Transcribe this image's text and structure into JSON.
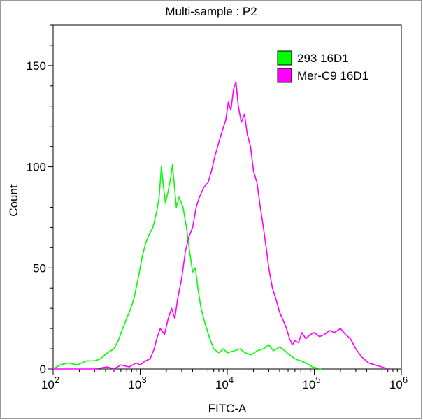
{
  "chart_data": {
    "type": "line",
    "title": "Multi-sample : P2",
    "xlabel": "FITC-A",
    "ylabel": "Count",
    "x_scale": "log",
    "xlim": [
      100,
      1000000
    ],
    "ylim": [
      0,
      170
    ],
    "x_ticks": [
      {
        "value": 100,
        "base": "10",
        "exp": "2"
      },
      {
        "value": 1000,
        "base": "10",
        "exp": "3"
      },
      {
        "value": 10000,
        "base": "10",
        "exp": "4"
      },
      {
        "value": 100000,
        "base": "10",
        "exp": "5"
      },
      {
        "value": 1000000,
        "base": "10",
        "exp": "6"
      }
    ],
    "y_ticks": [
      {
        "value": 0,
        "label": "0"
      },
      {
        "value": 50,
        "label": "50"
      },
      {
        "value": 100,
        "label": "100"
      },
      {
        "value": 150,
        "label": "150"
      }
    ],
    "grid": false,
    "legend_position": "top-right",
    "series": [
      {
        "name": "293 16D1",
        "color": "#00ff00",
        "points": [
          [
            100,
            0
          ],
          [
            120,
            2
          ],
          [
            150,
            3
          ],
          [
            190,
            2
          ],
          [
            240,
            4
          ],
          [
            300,
            4
          ],
          [
            350,
            5
          ],
          [
            420,
            8
          ],
          [
            500,
            10
          ],
          [
            560,
            14
          ],
          [
            630,
            20
          ],
          [
            700,
            25
          ],
          [
            780,
            30
          ],
          [
            850,
            35
          ],
          [
            950,
            45
          ],
          [
            1050,
            55
          ],
          [
            1150,
            62
          ],
          [
            1250,
            66
          ],
          [
            1400,
            70
          ],
          [
            1550,
            78
          ],
          [
            1650,
            85
          ],
          [
            1750,
            100
          ],
          [
            1850,
            90
          ],
          [
            1950,
            82
          ],
          [
            2100,
            88
          ],
          [
            2250,
            95
          ],
          [
            2350,
            101
          ],
          [
            2450,
            92
          ],
          [
            2600,
            80
          ],
          [
            2800,
            85
          ],
          [
            3100,
            80
          ],
          [
            3400,
            70
          ],
          [
            3700,
            58
          ],
          [
            4000,
            48
          ],
          [
            4300,
            50
          ],
          [
            4600,
            40
          ],
          [
            5000,
            30
          ],
          [
            5600,
            22
          ],
          [
            6300,
            15
          ],
          [
            7000,
            10
          ],
          [
            8000,
            8
          ],
          [
            9000,
            10
          ],
          [
            10000,
            8
          ],
          [
            12000,
            9
          ],
          [
            14000,
            10
          ],
          [
            16000,
            8
          ],
          [
            19000,
            7
          ],
          [
            22000,
            9
          ],
          [
            26000,
            10
          ],
          [
            30000,
            12
          ],
          [
            34000,
            9
          ],
          [
            40000,
            11
          ],
          [
            46000,
            9
          ],
          [
            52000,
            7
          ],
          [
            60000,
            5
          ],
          [
            70000,
            4
          ],
          [
            80000,
            3
          ],
          [
            95000,
            1
          ],
          [
            120000,
            0
          ]
        ]
      },
      {
        "name": "Mer-C9 16D1",
        "color": "#ff00ff",
        "points": [
          [
            100,
            0
          ],
          [
            300,
            0
          ],
          [
            420,
            1
          ],
          [
            500,
            0
          ],
          [
            600,
            2
          ],
          [
            750,
            1
          ],
          [
            900,
            3
          ],
          [
            1000,
            2
          ],
          [
            1150,
            4
          ],
          [
            1300,
            5
          ],
          [
            1450,
            10
          ],
          [
            1550,
            15
          ],
          [
            1700,
            20
          ],
          [
            1900,
            17
          ],
          [
            2100,
            25
          ],
          [
            2300,
            30
          ],
          [
            2500,
            25
          ],
          [
            2700,
            35
          ],
          [
            3000,
            45
          ],
          [
            3300,
            58
          ],
          [
            3600,
            65
          ],
          [
            4000,
            70
          ],
          [
            4400,
            80
          ],
          [
            4800,
            85
          ],
          [
            5400,
            90
          ],
          [
            6000,
            92
          ],
          [
            6600,
            98
          ],
          [
            7200,
            105
          ],
          [
            8000,
            112
          ],
          [
            8800,
            118
          ],
          [
            9600,
            123
          ],
          [
            10300,
            132
          ],
          [
            11000,
            128
          ],
          [
            11800,
            138
          ],
          [
            12600,
            142
          ],
          [
            13400,
            130
          ],
          [
            14500,
            122
          ],
          [
            15800,
            126
          ],
          [
            17000,
            116
          ],
          [
            18500,
            110
          ],
          [
            20000,
            98
          ],
          [
            22000,
            92
          ],
          [
            24000,
            80
          ],
          [
            26000,
            70
          ],
          [
            28000,
            60
          ],
          [
            30000,
            50
          ],
          [
            33000,
            40
          ],
          [
            36000,
            35
          ],
          [
            40000,
            28
          ],
          [
            44000,
            24
          ],
          [
            48000,
            20
          ],
          [
            52000,
            15
          ],
          [
            56000,
            12
          ],
          [
            60000,
            14
          ],
          [
            66000,
            13
          ],
          [
            72000,
            18
          ],
          [
            80000,
            15
          ],
          [
            90000,
            17
          ],
          [
            100000,
            18
          ],
          [
            115000,
            16
          ],
          [
            130000,
            17
          ],
          [
            150000,
            19
          ],
          [
            170000,
            18
          ],
          [
            200000,
            20
          ],
          [
            230000,
            17
          ],
          [
            260000,
            15
          ],
          [
            300000,
            10
          ],
          [
            350000,
            6
          ],
          [
            420000,
            3
          ],
          [
            500000,
            2
          ],
          [
            600000,
            1
          ],
          [
            700000,
            0
          ]
        ]
      }
    ]
  }
}
